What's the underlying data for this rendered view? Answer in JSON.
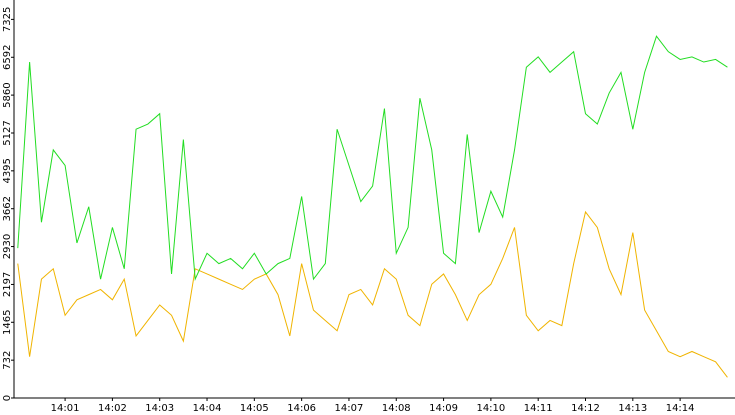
{
  "chart_data": {
    "type": "line",
    "x": [
      0,
      0.25,
      0.5,
      0.75,
      1,
      1.25,
      1.5,
      1.75,
      2,
      2.25,
      2.5,
      2.75,
      3,
      3.25,
      3.5,
      3.75,
      4,
      4.25,
      4.5,
      4.75,
      5,
      5.25,
      5.5,
      5.75,
      6,
      6.25,
      6.5,
      6.75,
      7,
      7.25,
      7.5,
      7.75,
      8,
      8.25,
      8.5,
      8.75,
      9,
      9.25,
      9.5,
      9.75,
      10,
      10.25,
      10.5,
      10.75,
      11,
      11.25,
      11.5,
      11.75,
      12,
      12.25,
      12.5,
      12.75,
      13,
      13.25,
      13.5,
      13.75,
      14,
      14.25,
      14.5,
      14.75,
      15
    ],
    "series": [
      {
        "color": "#22dd22",
        "values": [
          2900,
          6500,
          3400,
          4800,
          4500,
          3000,
          3700,
          2300,
          3300,
          2500,
          5200,
          5300,
          5500,
          2400,
          5000,
          2300,
          2800,
          2600,
          2700,
          2500,
          2800,
          2400,
          2600,
          2700,
          3900,
          2300,
          2600,
          5200,
          4500,
          3800,
          4100,
          5600,
          2800,
          3300,
          5800,
          4800,
          2800,
          2600,
          5100,
          3200,
          4000,
          3500,
          4800,
          6400,
          6600,
          6300,
          6500,
          6700,
          5500,
          5300,
          5900,
          6300,
          5200,
          6300,
          7000,
          6700,
          6550,
          6600,
          6500,
          6550,
          6400
        ]
      },
      {
        "color": "#f0b400",
        "values": [
          2600,
          800,
          2300,
          2500,
          1600,
          1900,
          2000,
          2100,
          1900,
          2300,
          1200,
          1500,
          1800,
          1600,
          1100,
          2500,
          2400,
          2300,
          2200,
          2100,
          2300,
          2400,
          2000,
          1200,
          2600,
          1700,
          1500,
          1300,
          2000,
          2100,
          1800,
          2500,
          2300,
          1600,
          1400,
          2200,
          2400,
          2000,
          1500,
          2000,
          2200,
          2700,
          3300,
          1600,
          1300,
          1500,
          1400,
          2600,
          3600,
          3300,
          2500,
          2000,
          3200,
          1700,
          1300,
          900,
          800,
          900,
          800,
          700,
          400
        ]
      }
    ],
    "xlim": [
      -0.08,
      15.16
    ],
    "xticks": [
      {
        "value": 1,
        "label": "14:01"
      },
      {
        "value": 2,
        "label": "14:02"
      },
      {
        "value": 3,
        "label": "14:03"
      },
      {
        "value": 4,
        "label": "14:04"
      },
      {
        "value": 5,
        "label": "14:05"
      },
      {
        "value": 6,
        "label": "14:06"
      },
      {
        "value": 7,
        "label": "14:07"
      },
      {
        "value": 8,
        "label": "14:08"
      },
      {
        "value": 9,
        "label": "14:09"
      },
      {
        "value": 10,
        "label": "14:10"
      },
      {
        "value": 11,
        "label": "14:11"
      },
      {
        "value": 12,
        "label": "14:12"
      },
      {
        "value": 13,
        "label": "14:13"
      },
      {
        "value": 14,
        "label": "14:14"
      }
    ],
    "ylim": [
      0,
      7700
    ],
    "yticks": [
      0,
      732,
      1465,
      2197,
      2930,
      3662,
      4395,
      5127,
      5860,
      6592,
      7325
    ]
  }
}
